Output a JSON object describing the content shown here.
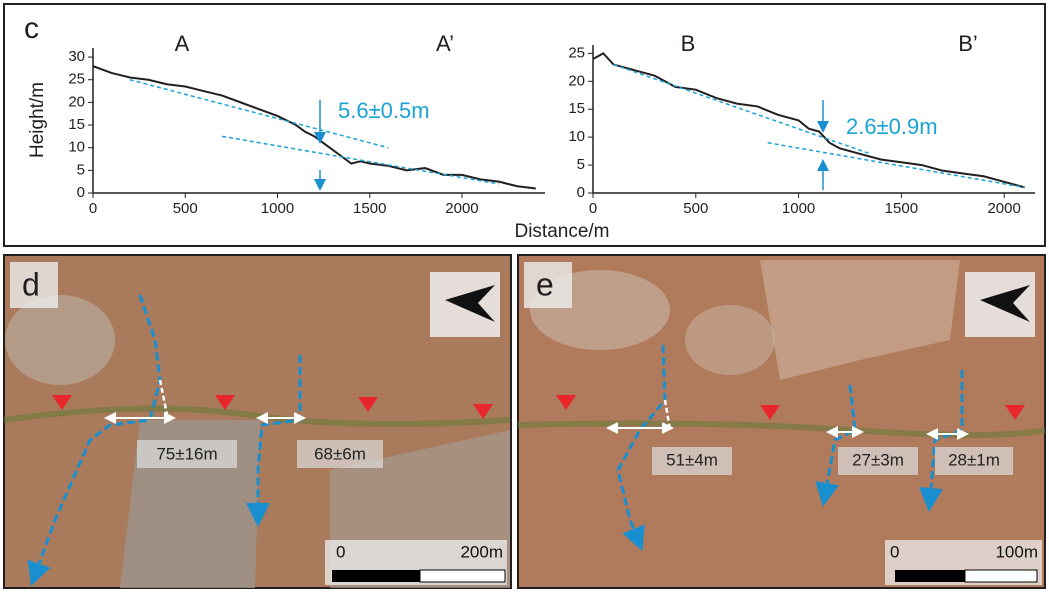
{
  "panel_c": {
    "label": "c"
  },
  "chart_data": [
    {
      "type": "line",
      "ylabel": "Height/m",
      "xlabel": "Distance/m",
      "point_labels": [
        "A",
        "A’"
      ],
      "annotation": "5.6±0.5m",
      "xlim": [
        0,
        2450
      ],
      "ylim": [
        0,
        32
      ],
      "xticks": [
        0,
        500,
        1000,
        1500,
        2000
      ],
      "yticks": [
        0,
        5,
        10,
        15,
        20,
        25,
        30
      ],
      "series": [
        {
          "color": "#231f20",
          "x": [
            0,
            100,
            200,
            300,
            400,
            500,
            600,
            700,
            800,
            900,
            1000,
            1100,
            1150,
            1200,
            1250,
            1300,
            1350,
            1400,
            1450,
            1500,
            1600,
            1700,
            1800,
            1900,
            2000,
            2100,
            2200,
            2300,
            2400
          ],
          "values": [
            28,
            26.5,
            25.5,
            25,
            24,
            23.5,
            22.5,
            21.5,
            20,
            18.5,
            17,
            15,
            13.5,
            12.5,
            11,
            9.5,
            8,
            6.5,
            7,
            6.5,
            6,
            5,
            5.5,
            4,
            4,
            3,
            2.5,
            1.5,
            1
          ]
        },
        {
          "color": "#1aa3d4",
          "dashed": true,
          "x": [
            200,
            1600
          ],
          "values": [
            25,
            10
          ]
        },
        {
          "color": "#1aa3d4",
          "dashed": true,
          "x": [
            700,
            2200
          ],
          "values": [
            12.5,
            2
          ]
        }
      ]
    },
    {
      "type": "line",
      "point_labels": [
        "B",
        "B’"
      ],
      "annotation": "2.6±0.9m",
      "xlim": [
        0,
        2150
      ],
      "ylim": [
        0,
        26.5
      ],
      "xticks": [
        0,
        500,
        1000,
        1500,
        2000
      ],
      "yticks": [
        0,
        5,
        10,
        15,
        20,
        25
      ],
      "series": [
        {
          "color": "#231f20",
          "x": [
            0,
            50,
            100,
            200,
            300,
            400,
            500,
            600,
            700,
            800,
            900,
            1000,
            1050,
            1100,
            1150,
            1200,
            1300,
            1400,
            1500,
            1600,
            1700,
            1800,
            1900,
            2000,
            2100
          ],
          "values": [
            24,
            25,
            23,
            22,
            21,
            19,
            18.5,
            17,
            16,
            15.5,
            14,
            13,
            11.5,
            11,
            9,
            8,
            7,
            6,
            5.5,
            5,
            4,
            3.5,
            3,
            2,
            1
          ]
        },
        {
          "color": "#1aa3d4",
          "dashed": true,
          "x": [
            100,
            1350
          ],
          "values": [
            23,
            7
          ]
        },
        {
          "color": "#1aa3d4",
          "dashed": true,
          "x": [
            850,
            2100
          ],
          "values": [
            9,
            1
          ]
        }
      ]
    }
  ],
  "panel_d": {
    "label": "d",
    "measurements": [
      "75±16m",
      "68±6m"
    ],
    "scale": [
      "0",
      "200m"
    ]
  },
  "panel_e": {
    "label": "e",
    "measurements": [
      "51±4m",
      "27±3m",
      "28±1m"
    ],
    "scale": [
      "0",
      "100m"
    ]
  }
}
